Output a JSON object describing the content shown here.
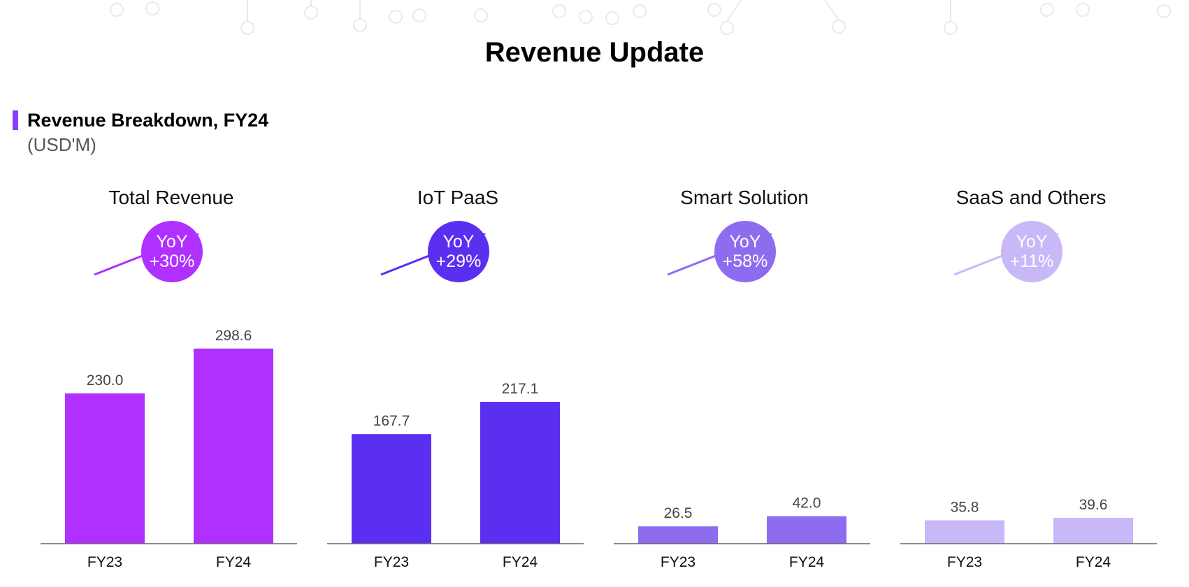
{
  "page": {
    "title": "Revenue Update",
    "section_heading": "Revenue Breakdown, FY24",
    "section_unit": "(USD'M)"
  },
  "colors": {
    "accent": "#8a3ffc",
    "total_revenue": "#b030ff",
    "iot_paas": "#5b2ff0",
    "smart_solution": "#8e6cf0",
    "saas_others": "#c9b8f8"
  },
  "chart_data": [
    {
      "type": "bar",
      "title": "Total Revenue",
      "yoy_label": "YoY",
      "yoy_value": "+30%",
      "color": "#b030ff",
      "categories": [
        "FY23",
        "FY24"
      ],
      "values": [
        230.0,
        298.6
      ],
      "value_labels": [
        "230.0",
        "298.6"
      ],
      "ylim": [
        0,
        340
      ]
    },
    {
      "type": "bar",
      "title": "IoT PaaS",
      "yoy_label": "YoY",
      "yoy_value": "+29%",
      "color": "#5b2ff0",
      "categories": [
        "FY23",
        "FY24"
      ],
      "values": [
        167.7,
        217.1
      ],
      "value_labels": [
        "167.7",
        "217.1"
      ],
      "ylim": [
        0,
        340
      ]
    },
    {
      "type": "bar",
      "title": "Smart Solution",
      "yoy_label": "YoY",
      "yoy_value": "+58%",
      "color": "#8e6cf0",
      "categories": [
        "FY23",
        "FY24"
      ],
      "values": [
        26.5,
        42.0
      ],
      "value_labels": [
        "26.5",
        "42.0"
      ],
      "ylim": [
        0,
        340
      ]
    },
    {
      "type": "bar",
      "title": "SaaS and Others",
      "yoy_label": "YoY",
      "yoy_value": "+11%",
      "color": "#c9b8f8",
      "categories": [
        "FY23",
        "FY24"
      ],
      "values": [
        35.8,
        39.6
      ],
      "value_labels": [
        "35.8",
        "39.6"
      ],
      "ylim": [
        0,
        340
      ]
    }
  ]
}
